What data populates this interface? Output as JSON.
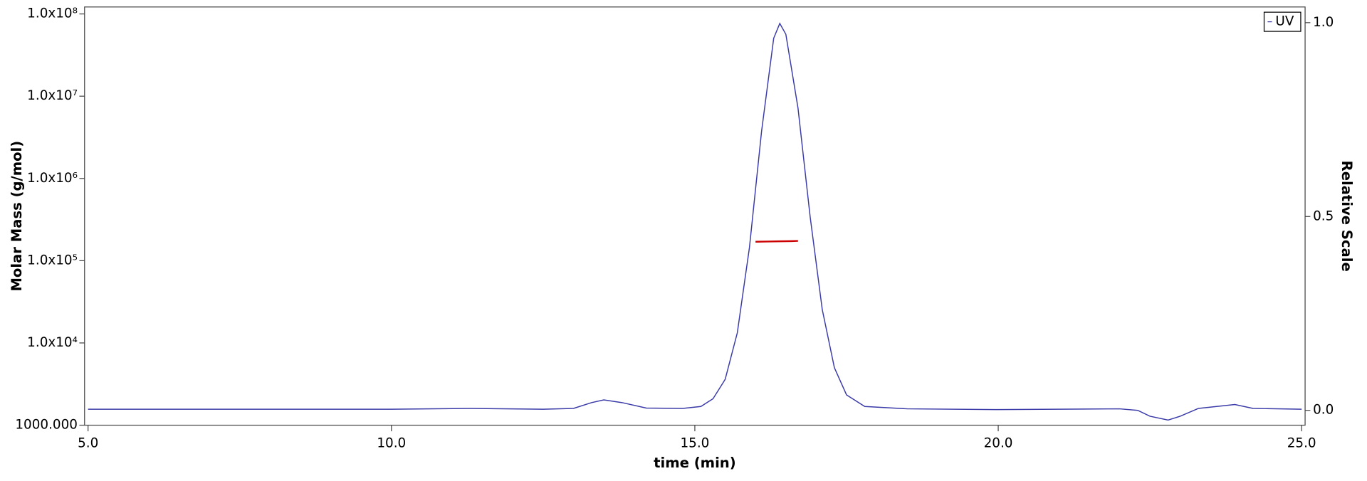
{
  "chart_data": {
    "type": "line",
    "x_label": "time (min)",
    "y_label": "Molar Mass (g/mol)",
    "y2_label": "Relative Scale",
    "xlim": [
      5,
      25
    ],
    "xticks": [
      {
        "value": 5,
        "label": "5.0"
      },
      {
        "value": 10,
        "label": "10.0"
      },
      {
        "value": 15,
        "label": "15.0"
      },
      {
        "value": 20,
        "label": "20.0"
      },
      {
        "value": 25,
        "label": "25.0"
      }
    ],
    "ylim": [
      1000,
      100000000
    ],
    "log_y": true,
    "yticks": [
      {
        "value": 1000,
        "label": "1000.000"
      },
      {
        "value": 10000,
        "label": "1.0x10⁴"
      },
      {
        "value": 100000,
        "label": "1.0x10⁵"
      },
      {
        "value": 1000000,
        "label": "1.0x10⁶"
      },
      {
        "value": 10000000,
        "label": "1.0x10⁷"
      },
      {
        "value": 100000000,
        "label": "1.0x10⁸"
      }
    ],
    "y2lim": [
      0,
      1
    ],
    "y2ticks": [
      {
        "value": 0,
        "label": "0.0"
      },
      {
        "value": 0.5,
        "label": "0.5"
      },
      {
        "value": 1,
        "label": "1.0"
      }
    ],
    "legend": "upper right",
    "series": [
      {
        "name": "UV",
        "color": "#3a3aa8",
        "axis": "y2",
        "x": [
          5.0,
          10.0,
          11.3,
          12.5,
          13.0,
          13.3,
          13.5,
          13.8,
          14.2,
          14.8,
          15.1,
          15.3,
          15.5,
          15.7,
          15.9,
          16.1,
          16.3,
          16.4,
          16.5,
          16.7,
          16.9,
          17.1,
          17.3,
          17.5,
          17.8,
          18.5,
          20.0,
          22.0,
          22.3,
          22.5,
          22.8,
          23.0,
          23.3,
          23.6,
          23.9,
          24.2,
          25.0
        ],
        "values": [
          0.003,
          0.003,
          0.005,
          0.003,
          0.005,
          0.02,
          0.027,
          0.02,
          0.006,
          0.005,
          0.01,
          0.03,
          0.08,
          0.2,
          0.42,
          0.72,
          0.96,
          0.998,
          0.97,
          0.78,
          0.5,
          0.26,
          0.11,
          0.04,
          0.01,
          0.004,
          0.002,
          0.004,
          0.0,
          -0.015,
          -0.025,
          -0.015,
          0.005,
          0.01,
          0.015,
          0.005,
          0.003
        ]
      },
      {
        "color": "#cc0000",
        "x": [
          16.0,
          16.2,
          16.4,
          16.6,
          16.7
        ],
        "values": [
          170000,
          171000,
          172000,
          173000,
          174000
        ]
      }
    ]
  }
}
